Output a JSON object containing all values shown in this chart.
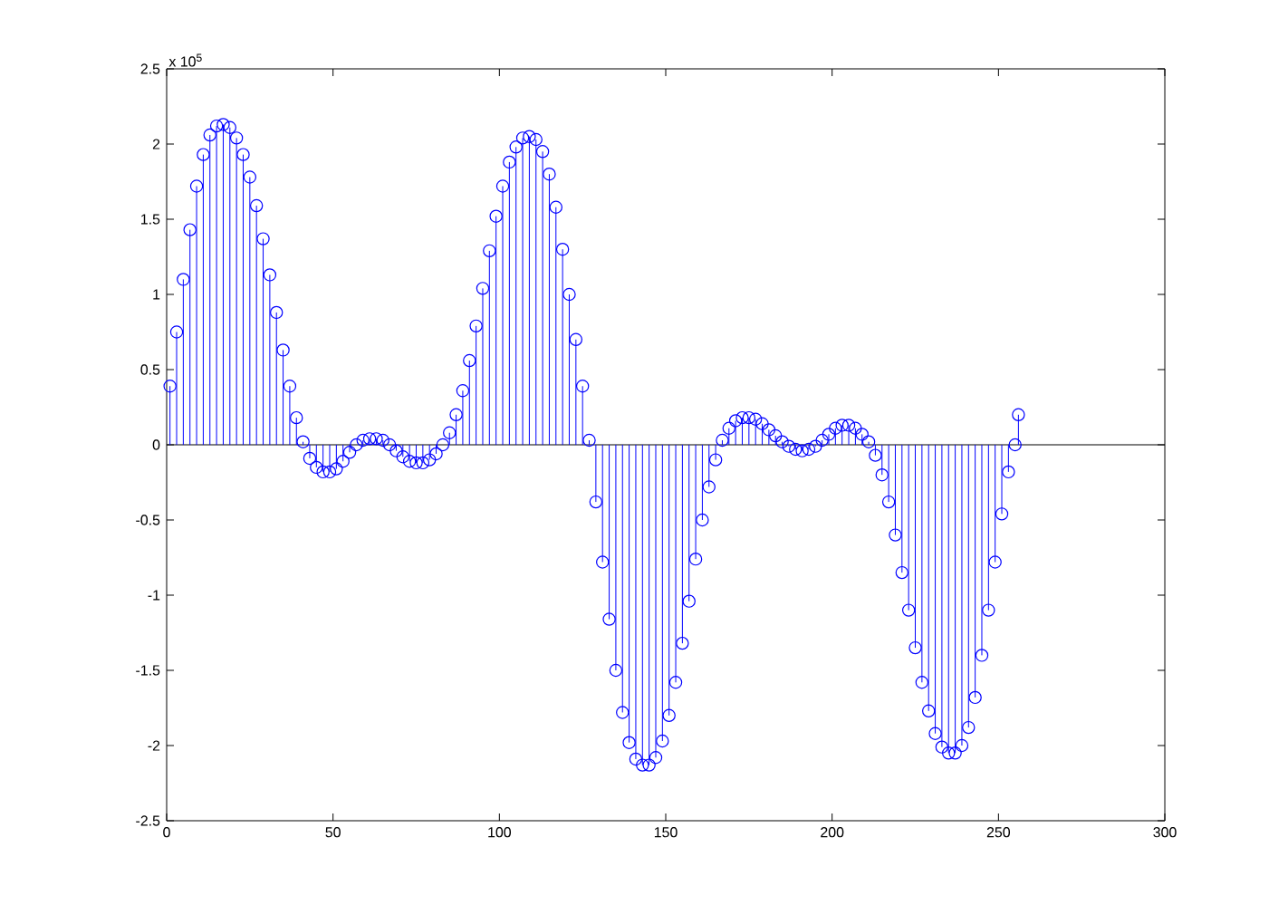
{
  "chart_data": {
    "type": "lollipop",
    "x": [
      1,
      3,
      5,
      7,
      9,
      11,
      13,
      15,
      17,
      19,
      21,
      23,
      25,
      27,
      29,
      31,
      33,
      35,
      37,
      39,
      41,
      43,
      45,
      47,
      49,
      51,
      53,
      55,
      57,
      59,
      61,
      63,
      65,
      67,
      69,
      71,
      73,
      75,
      77,
      79,
      81,
      83,
      85,
      87,
      89,
      91,
      93,
      95,
      97,
      99,
      101,
      103,
      105,
      107,
      109,
      111,
      113,
      115,
      117,
      119,
      121,
      123,
      125,
      127,
      129,
      131,
      133,
      135,
      137,
      139,
      141,
      143,
      145,
      147,
      149,
      151,
      153,
      155,
      157,
      159,
      161,
      163,
      165,
      167,
      169,
      171,
      173,
      175,
      177,
      179,
      181,
      183,
      185,
      187,
      189,
      191,
      193,
      195,
      197,
      199,
      201,
      203,
      205,
      207,
      209,
      211,
      213,
      215,
      217,
      219,
      221,
      223,
      225,
      227,
      229,
      231,
      233,
      235,
      237,
      239,
      241,
      243,
      245,
      247,
      249,
      251,
      253,
      255,
      256
    ],
    "series": [
      {
        "color": "#0000ff",
        "values": [
          0.39,
          0.75,
          1.1,
          1.43,
          1.72,
          1.93,
          2.06,
          2.12,
          2.13,
          2.11,
          2.04,
          1.93,
          1.78,
          1.59,
          1.37,
          1.13,
          0.88,
          0.63,
          0.39,
          0.18,
          0.02,
          -0.09,
          -0.15,
          -0.18,
          -0.18,
          -0.16,
          -0.11,
          -0.05,
          0.0,
          0.03,
          0.04,
          0.04,
          0.03,
          0.0,
          -0.04,
          -0.08,
          -0.11,
          -0.12,
          -0.12,
          -0.1,
          -0.06,
          0.0,
          0.08,
          0.2,
          0.36,
          0.56,
          0.79,
          1.04,
          1.29,
          1.52,
          1.72,
          1.88,
          1.98,
          2.04,
          2.05,
          2.03,
          1.95,
          1.8,
          1.58,
          1.3,
          1.0,
          0.7,
          0.39,
          0.03,
          -0.38,
          -0.78,
          -1.16,
          -1.5,
          -1.78,
          -1.98,
          -2.09,
          -2.13,
          -2.13,
          -2.08,
          -1.97,
          -1.8,
          -1.58,
          -1.32,
          -1.04,
          -0.76,
          -0.5,
          -0.28,
          -0.1,
          0.03,
          0.11,
          0.16,
          0.18,
          0.18,
          0.17,
          0.14,
          0.1,
          0.06,
          0.02,
          -0.01,
          -0.03,
          -0.04,
          -0.03,
          -0.01,
          0.03,
          0.07,
          0.11,
          0.13,
          0.13,
          0.11,
          0.07,
          0.02,
          -0.07,
          -0.2,
          -0.38,
          -0.6,
          -0.85,
          -1.1,
          -1.35,
          -1.58,
          -1.77,
          -1.92,
          -2.01,
          -2.05,
          -2.05,
          -2.0,
          -1.88,
          -1.68,
          -1.4,
          -1.1,
          -0.78,
          -0.46,
          -0.18,
          0.0,
          0.2
        ]
      }
    ],
    "marker": "circle",
    "xlim": [
      0,
      300
    ],
    "xticks": [
      0,
      50,
      100,
      150,
      200,
      250,
      300
    ],
    "ylim": [
      -2.5,
      2.5
    ],
    "yticks": [
      -2.5,
      -2,
      -1.5,
      -1,
      -0.5,
      0,
      0.5,
      1,
      1.5,
      2,
      2.5
    ],
    "ref_lines": [
      {
        "axis": "y",
        "value": 0,
        "color": "#000000"
      }
    ],
    "annotations": [
      "x 10$^{5}$"
    ]
  }
}
